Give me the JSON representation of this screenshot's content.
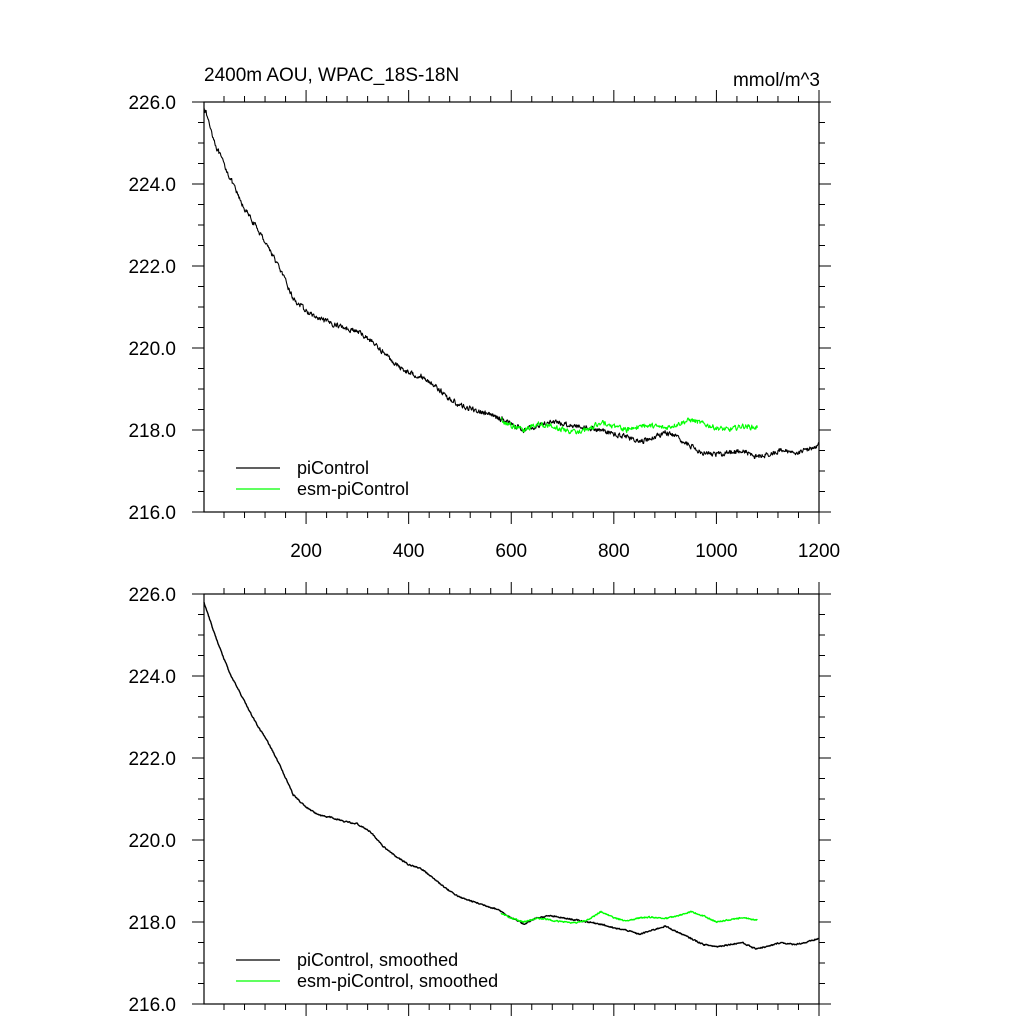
{
  "header": {
    "title": "2400m AOU, WPAC_18S-18N",
    "units": "mmol/m^3"
  },
  "colors": {
    "piControl": "#000000",
    "esm_piControl": "#00ff00"
  },
  "chart_data": [
    {
      "type": "line",
      "panel": "top",
      "title": "2400m AOU, WPAC_18S-18N",
      "units": "mmol/m^3",
      "xlabel": "",
      "ylabel": "",
      "xlim": [
        1,
        1200
      ],
      "ylim": [
        216.0,
        226.0
      ],
      "xticks": [
        "200",
        "400",
        "600",
        "800",
        "1000",
        "1200"
      ],
      "yticks": [
        "216.0",
        "218.0",
        "220.0",
        "222.0",
        "224.0",
        "226.0"
      ],
      "legend_position": "bottom-left",
      "series": [
        {
          "name": "piControl",
          "color": "#000000",
          "x": [
            1,
            25,
            50,
            75,
            100,
            125,
            150,
            175,
            200,
            225,
            250,
            275,
            300,
            325,
            350,
            375,
            400,
            425,
            450,
            475,
            500,
            525,
            550,
            575,
            600,
            625,
            650,
            675,
            700,
            725,
            750,
            775,
            800,
            825,
            850,
            875,
            900,
            925,
            950,
            975,
            1000,
            1025,
            1050,
            1075,
            1100,
            1125,
            1150,
            1175,
            1200
          ],
          "y": [
            225.9,
            224.9,
            224.2,
            223.5,
            223.0,
            222.5,
            221.9,
            221.2,
            220.9,
            220.7,
            220.6,
            220.5,
            220.4,
            220.2,
            219.9,
            219.6,
            219.4,
            219.3,
            219.1,
            218.8,
            218.6,
            218.5,
            218.4,
            218.3,
            218.15,
            218.0,
            218.1,
            218.2,
            218.15,
            218.1,
            218.05,
            218.0,
            217.9,
            217.85,
            217.7,
            217.8,
            217.95,
            217.8,
            217.6,
            217.45,
            217.4,
            217.45,
            217.5,
            217.35,
            217.4,
            217.5,
            217.45,
            217.5,
            217.65
          ],
          "noise": 0.09
        },
        {
          "name": "esm-piControl",
          "color": "#00ff00",
          "x": [
            580,
            600,
            625,
            650,
            675,
            700,
            725,
            750,
            775,
            800,
            825,
            850,
            875,
            900,
            925,
            950,
            975,
            1000,
            1025,
            1050,
            1080
          ],
          "y": [
            218.25,
            218.1,
            218.0,
            218.15,
            218.1,
            218.0,
            217.95,
            218.0,
            218.2,
            218.1,
            218.0,
            218.1,
            218.1,
            218.05,
            218.15,
            218.25,
            218.15,
            218.05,
            218.0,
            218.1,
            218.05
          ],
          "noise": 0.09
        }
      ]
    },
    {
      "type": "line",
      "panel": "bottom",
      "title": "",
      "xlabel": "",
      "ylabel": "",
      "xlim": [
        1,
        1200
      ],
      "ylim": [
        216.0,
        226.0
      ],
      "xticks": [],
      "yticks": [
        "216.0",
        "218.0",
        "220.0",
        "222.0",
        "224.0",
        "226.0"
      ],
      "legend_position": "bottom-left",
      "series": [
        {
          "name": "piControl, smoothed",
          "color": "#000000",
          "x": [
            1,
            25,
            50,
            75,
            100,
            125,
            150,
            175,
            200,
            225,
            250,
            275,
            300,
            325,
            350,
            375,
            400,
            425,
            450,
            475,
            500,
            525,
            550,
            575,
            600,
            625,
            650,
            675,
            700,
            725,
            750,
            775,
            800,
            825,
            850,
            875,
            900,
            925,
            950,
            975,
            1000,
            1025,
            1050,
            1075,
            1100,
            1125,
            1150,
            1175,
            1200
          ],
          "y": [
            225.8,
            224.9,
            224.1,
            223.5,
            222.9,
            222.4,
            221.8,
            221.1,
            220.8,
            220.6,
            220.55,
            220.45,
            220.4,
            220.2,
            219.85,
            219.6,
            219.4,
            219.3,
            219.05,
            218.8,
            218.6,
            218.5,
            218.4,
            218.3,
            218.1,
            217.95,
            218.1,
            218.15,
            218.1,
            218.05,
            218.0,
            217.95,
            217.85,
            217.8,
            217.7,
            217.8,
            217.9,
            217.75,
            217.6,
            217.45,
            217.4,
            217.45,
            217.5,
            217.35,
            217.4,
            217.5,
            217.45,
            217.5,
            217.6
          ],
          "noise": 0.025
        },
        {
          "name": "esm-piControl, smoothed",
          "color": "#00ff00",
          "x": [
            580,
            600,
            625,
            650,
            675,
            700,
            725,
            750,
            775,
            800,
            825,
            850,
            875,
            900,
            925,
            950,
            975,
            1000,
            1025,
            1050,
            1080
          ],
          "y": [
            218.2,
            218.1,
            218.0,
            218.1,
            218.05,
            218.0,
            217.98,
            218.05,
            218.25,
            218.1,
            218.02,
            218.1,
            218.12,
            218.08,
            218.15,
            218.25,
            218.15,
            218.0,
            218.05,
            218.1,
            218.05
          ],
          "noise": 0.025
        }
      ]
    }
  ]
}
